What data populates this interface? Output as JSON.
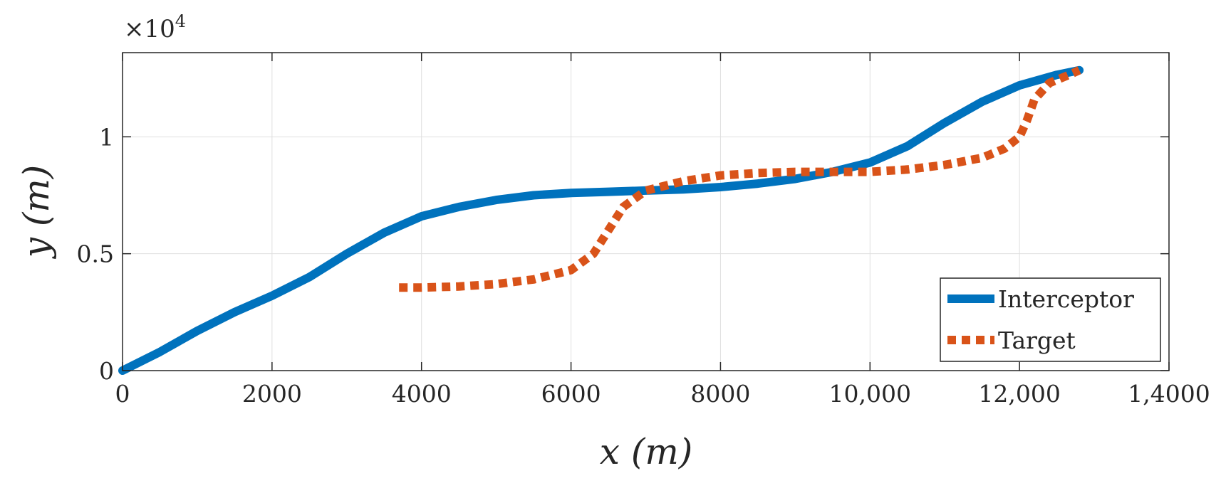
{
  "chart_data": {
    "type": "line",
    "xlabel": "x (m)",
    "ylabel": "y (m)",
    "xlim": [
      0,
      14000
    ],
    "ylim": [
      0,
      13600
    ],
    "grid": true,
    "x_ticks": [
      0,
      2000,
      4000,
      6000,
      8000,
      10000,
      12000,
      14000
    ],
    "x_tick_labels": [
      "0",
      "2000",
      "4000",
      "6000",
      "8000",
      "10,000",
      "12,000",
      "1,4000"
    ],
    "y_ticks": [
      0,
      5000,
      10000
    ],
    "y_tick_labels": [
      "0",
      "0.5",
      "1"
    ],
    "y_multiplier_base": "×10",
    "y_multiplier_exp": "4",
    "legend_position": "bottom-right",
    "series": [
      {
        "name": "Interceptor",
        "color": "#0072BD",
        "style": "solid",
        "x": [
          0,
          500,
          1000,
          1500,
          2000,
          2500,
          3000,
          3500,
          4000,
          4500,
          5000,
          5500,
          6000,
          6500,
          7000,
          7500,
          8000,
          8500,
          9000,
          9500,
          10000,
          10500,
          11000,
          11500,
          12000,
          12500,
          12800
        ],
        "y": [
          0,
          800,
          1700,
          2500,
          3200,
          4000,
          5000,
          5900,
          6600,
          7000,
          7300,
          7500,
          7600,
          7650,
          7700,
          7750,
          7850,
          8000,
          8200,
          8500,
          8900,
          9600,
          10600,
          11500,
          12200,
          12650,
          12850
        ]
      },
      {
        "name": "Target",
        "color": "#D95319",
        "style": "dotted",
        "x": [
          3700,
          4000,
          4500,
          5000,
          5500,
          6000,
          6300,
          6500,
          6700,
          7000,
          7500,
          8000,
          8500,
          9000,
          9500,
          10000,
          10500,
          11000,
          11500,
          11800,
          12000,
          12100,
          12200,
          12400,
          12700,
          12800
        ],
        "y": [
          3550,
          3550,
          3600,
          3700,
          3900,
          4300,
          5000,
          6000,
          7000,
          7700,
          8100,
          8350,
          8450,
          8500,
          8500,
          8500,
          8600,
          8800,
          9100,
          9500,
          10000,
          10700,
          11600,
          12300,
          12700,
          12850
        ]
      }
    ]
  }
}
